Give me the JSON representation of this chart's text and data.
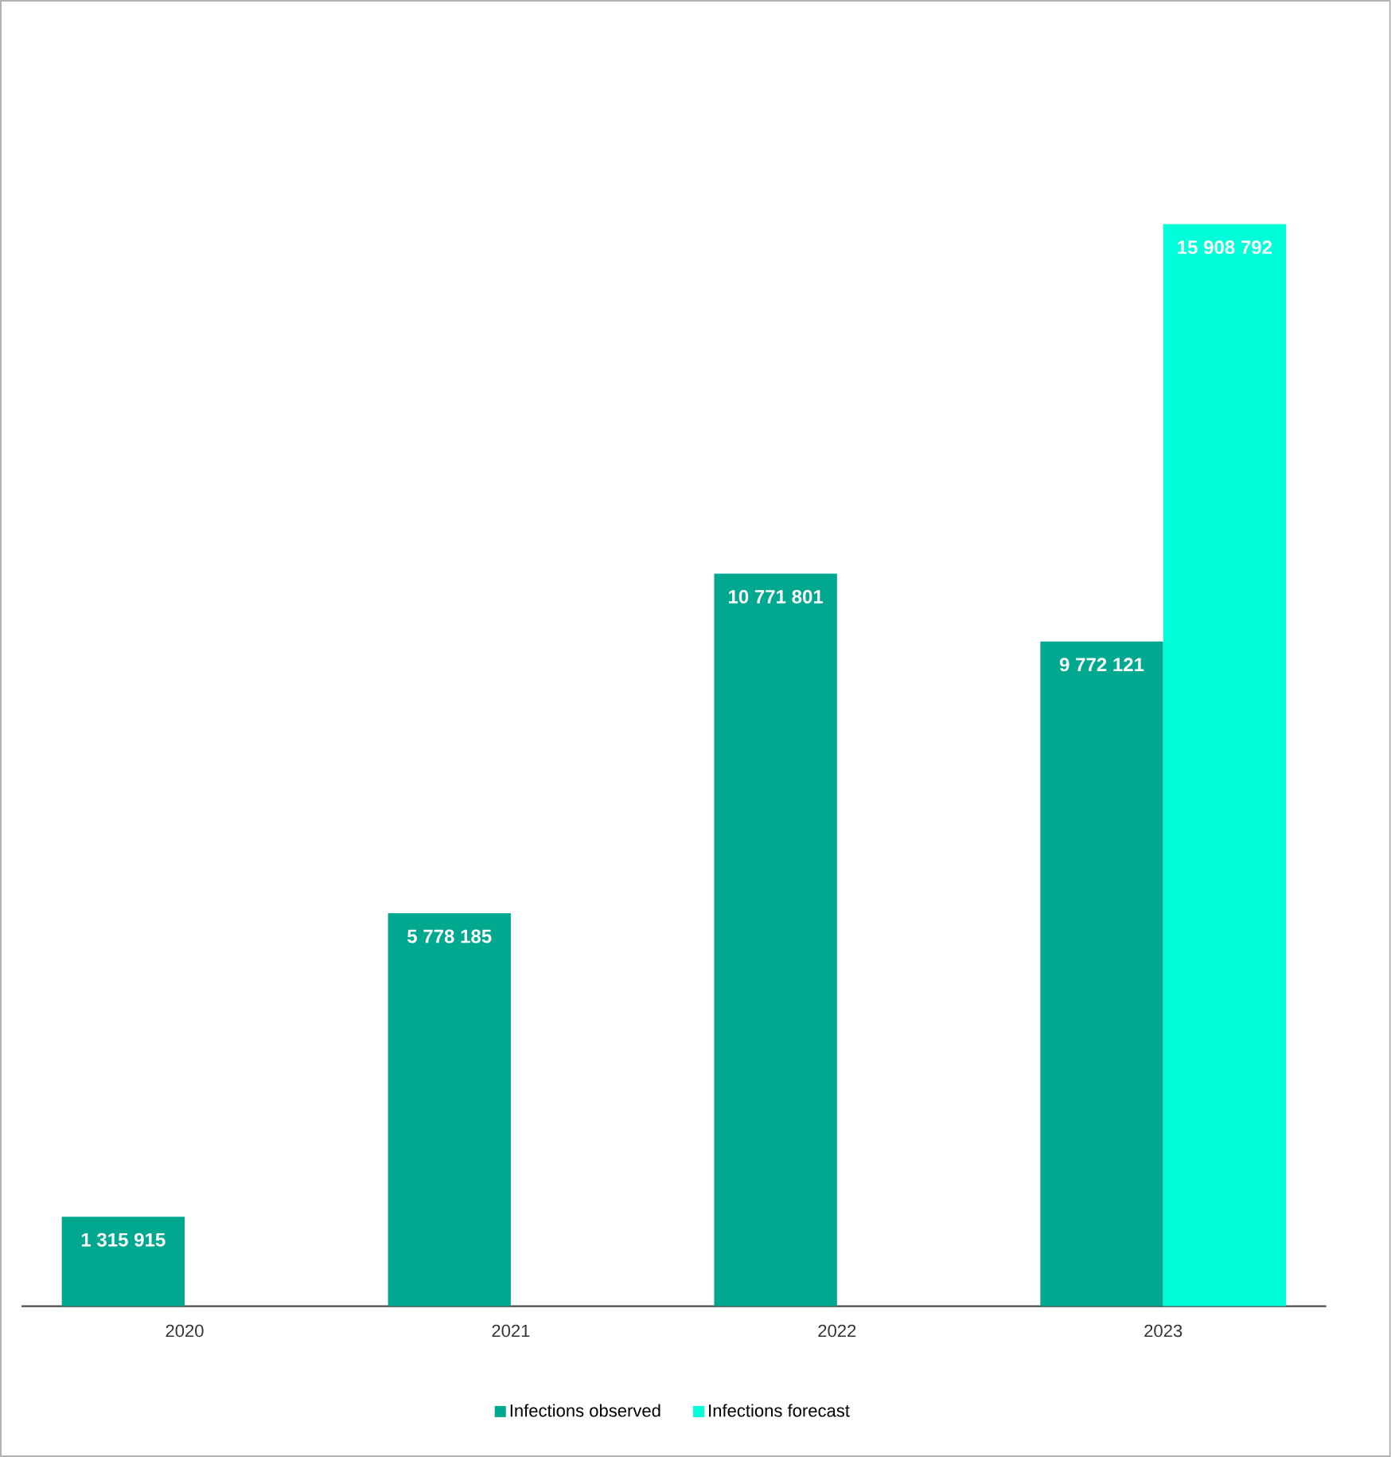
{
  "chart_data": {
    "type": "bar",
    "categories": [
      "2020",
      "2021",
      "2022",
      "2023"
    ],
    "series": [
      {
        "name": "Infections observed",
        "color": "#00a88f",
        "values": [
          1315915,
          5778185,
          10771801,
          9772121
        ],
        "value_labels": [
          "1 315 915",
          "5 778 185",
          "10 771 801",
          "9 772 121"
        ]
      },
      {
        "name": "Infections forecast",
        "color": "#00ffd9",
        "values": [
          null,
          null,
          null,
          15908792
        ],
        "value_labels": [
          null,
          null,
          null,
          "15 908 792"
        ]
      }
    ],
    "legend": "bottom"
  }
}
